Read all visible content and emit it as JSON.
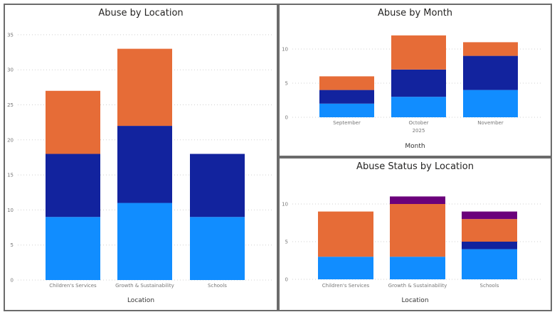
{
  "colors": {
    "blue": "#118dff",
    "navy": "#12239e",
    "orange": "#e66c37",
    "purple": "#6b007b",
    "grid": "#d0d0d0"
  },
  "chart_data": [
    {
      "type": "bar",
      "stacked": true,
      "title": "Abuse by Location",
      "xlabel": "Location",
      "ylabel": "",
      "categories": [
        "Children's Services",
        "Growth & Sustainability",
        "Schools"
      ],
      "ylim": [
        0,
        35
      ],
      "yticks": [
        "0",
        "5",
        "10",
        "15",
        "20",
        "25",
        "30",
        "35"
      ],
      "ytick_values": [
        0,
        5,
        10,
        15,
        20,
        25,
        30,
        35
      ],
      "series": [
        {
          "color": "#118dff",
          "values": [
            9,
            11,
            9
          ]
        },
        {
          "color": "#12239e",
          "values": [
            9,
            11,
            9
          ]
        },
        {
          "color": "#e66c37",
          "values": [
            9,
            11,
            0
          ]
        }
      ]
    },
    {
      "type": "bar",
      "stacked": true,
      "title": "Abuse by Month",
      "xlabel": "Month",
      "ylabel": "",
      "categories": [
        "September",
        "October",
        "November"
      ],
      "x_group_label": "2025",
      "ylim": [
        0,
        12
      ],
      "yticks": [
        "0",
        "5",
        "10"
      ],
      "ytick_values": [
        0,
        5,
        10
      ],
      "series": [
        {
          "color": "#118dff",
          "values": [
            2,
            3,
            4
          ]
        },
        {
          "color": "#12239e",
          "values": [
            2,
            4,
            5
          ]
        },
        {
          "color": "#e66c37",
          "values": [
            2,
            5,
            2
          ]
        }
      ]
    },
    {
      "type": "bar",
      "stacked": true,
      "title": "Abuse Status by Location",
      "xlabel": "Location",
      "ylabel": "",
      "categories": [
        "Children's Services",
        "Growth & Sustainability",
        "Schools"
      ],
      "ylim": [
        0,
        11
      ],
      "yticks": [
        "0",
        "5",
        "10"
      ],
      "ytick_values": [
        0,
        5,
        10
      ],
      "series": [
        {
          "color": "#118dff",
          "values": [
            3,
            3,
            4
          ]
        },
        {
          "color": "#12239e",
          "values": [
            0,
            0,
            1
          ]
        },
        {
          "color": "#e66c37",
          "values": [
            6,
            7,
            3
          ]
        },
        {
          "color": "#6b007b",
          "values": [
            0,
            1,
            1
          ]
        }
      ]
    }
  ]
}
